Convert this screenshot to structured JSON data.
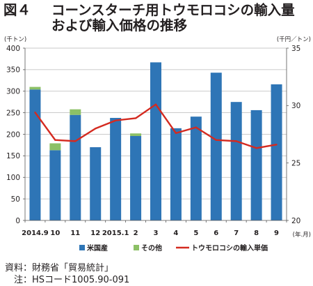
{
  "chart_data": {
    "type": "bar",
    "stacked": true,
    "figure_label": "図４",
    "title": [
      "コーンスターチ用トウモロコシの輸入量",
      "および輸入価格の推移"
    ],
    "xlabel": "(年.月)",
    "ylabel": "(千トン)",
    "ylabel_right": "(千円／トン)",
    "categories": [
      "2014.9",
      "10",
      "11",
      "12",
      "2015.1",
      "2",
      "3",
      "4",
      "5",
      "6",
      "7",
      "8",
      "9"
    ],
    "ylim": [
      0,
      400
    ],
    "yticks": [
      0,
      50,
      100,
      150,
      200,
      250,
      300,
      350,
      400
    ],
    "ylim_right": [
      20,
      35
    ],
    "yticks_right": [
      20,
      25,
      30,
      35
    ],
    "grid": true,
    "legend_position": "bottom",
    "series": [
      {
        "name": "米国産",
        "type": "bar",
        "axis": "left",
        "color": "#2e75b6",
        "values": [
          304,
          163,
          245,
          170,
          238,
          196,
          367,
          214,
          241,
          343,
          275,
          256,
          316
        ]
      },
      {
        "name": "その他",
        "type": "bar",
        "axis": "left",
        "color": "#8cc066",
        "values": [
          6,
          16,
          13,
          0,
          0,
          6,
          0,
          0,
          0,
          0,
          0,
          0,
          0
        ]
      },
      {
        "name": "トウモロコシの輸入単価",
        "type": "line",
        "axis": "right",
        "color": "#d42a20",
        "values": [
          29.4,
          27.0,
          26.9,
          28.0,
          28.7,
          28.9,
          30.1,
          27.6,
          28.1,
          27.0,
          26.9,
          26.3,
          26.6
        ]
      }
    ],
    "source": "資料：財務省「貿易統計」",
    "note": "注：HSコード1005.90-091"
  }
}
